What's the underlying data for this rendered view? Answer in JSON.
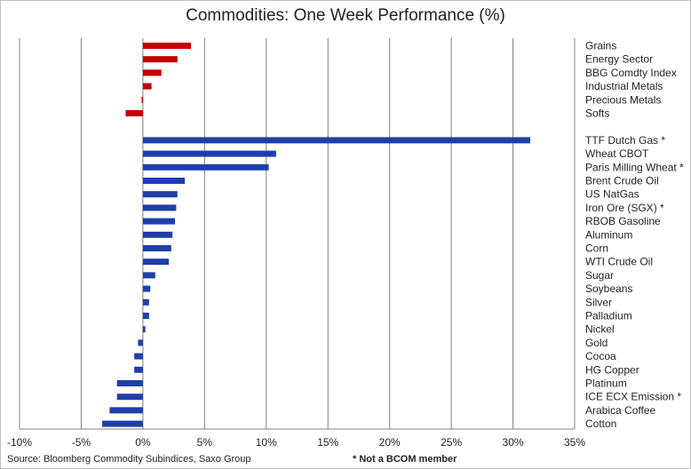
{
  "chart_data": {
    "type": "bar",
    "orientation": "horizontal",
    "title": "Commodities: One Week Performance (%)",
    "xlabel": "",
    "ylabel": "",
    "xlim": [
      -10,
      35
    ],
    "x_ticks": [
      "-10%",
      "-5%",
      "0%",
      "5%",
      "10%",
      "15%",
      "20%",
      "25%",
      "30%",
      "35%"
    ],
    "grid": "vertical",
    "legend": "none",
    "groups": [
      {
        "name": "",
        "color": "#c00000",
        "categories": [
          "Grains",
          "Energy Sector",
          "BBG Comdty Index",
          "Industrial Metals",
          "Precious Metals",
          "Softs"
        ],
        "values": [
          3.9,
          2.8,
          1.5,
          0.7,
          -0.1,
          -1.4
        ]
      },
      {
        "name": "",
        "color": "#1f3fa8",
        "categories": [
          "TTF Dutch Gas *",
          "Wheat CBOT",
          "Paris Milling Wheat *",
          "Brent Crude Oil",
          "US NatGas",
          "Iron Ore (SGX) *",
          "RBOB Gasoline",
          "Aluminum",
          "Corn",
          "WTI Crude Oil",
          "Sugar",
          "Soybeans",
          "Silver",
          "Palladium",
          "Nickel",
          "Gold",
          "Cocoa",
          "HG Copper",
          "Platinum",
          "ICE ECX Emission *",
          "Arabica Coffee",
          "Cotton"
        ],
        "values": [
          31.4,
          10.8,
          10.2,
          3.4,
          2.8,
          2.7,
          2.6,
          2.4,
          2.3,
          2.1,
          1.0,
          0.6,
          0.5,
          0.5,
          0.2,
          -0.4,
          -0.7,
          -0.7,
          -2.1,
          -2.1,
          -2.7,
          -3.3
        ]
      }
    ]
  },
  "footer": {
    "source": "Source: Bloomberg Commodity Subindices, Saxo Group",
    "note": "* Not a BCOM member"
  }
}
